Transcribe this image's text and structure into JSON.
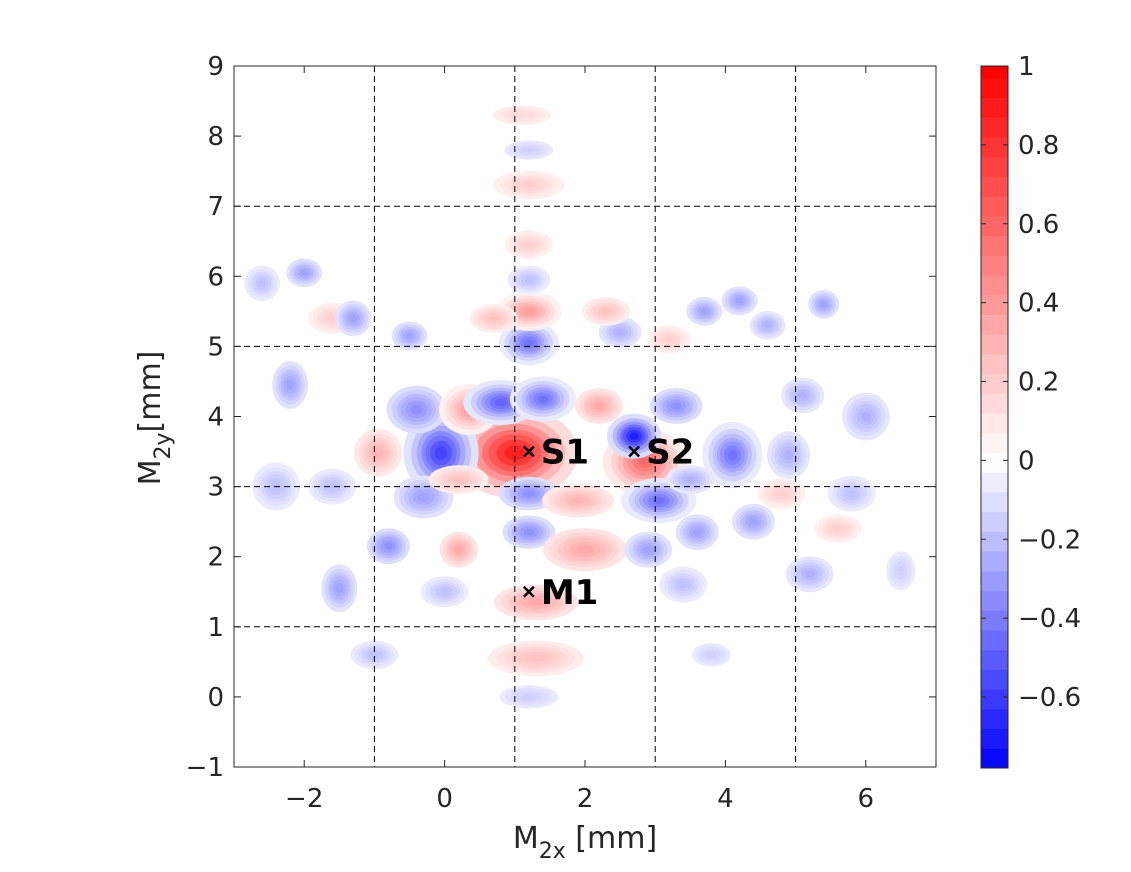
{
  "chart_data": {
    "type": "heatmap",
    "xlabel": {
      "main": "M",
      "sub": "2x",
      "unit": " [mm]"
    },
    "ylabel": {
      "main": "M",
      "sub": "2y",
      "unit": "[mm]"
    },
    "xlim": [
      -3,
      7
    ],
    "ylim": [
      -1,
      9
    ],
    "xticks": [
      -2,
      0,
      2,
      4,
      6
    ],
    "xtick_labels": [
      "−2",
      "0",
      "2",
      "4",
      "6"
    ],
    "yticks": [
      -1,
      0,
      1,
      2,
      3,
      4,
      5,
      6,
      7,
      8,
      9
    ],
    "ytick_labels": [
      "−1",
      "0",
      "1",
      "2",
      "3",
      "4",
      "5",
      "6",
      "7",
      "8",
      "9"
    ],
    "grid_x": [
      -1,
      1,
      3,
      5
    ],
    "grid_y": [
      1,
      3,
      5,
      7
    ],
    "grid_style": "dashed",
    "colorbar": {
      "min": -0.78,
      "max": 1,
      "ticks": [
        1,
        0.8,
        0.6,
        0.4,
        0.2,
        0,
        -0.2,
        -0.4,
        -0.6
      ],
      "tick_labels": [
        "1",
        "0.8",
        "0.6",
        "0.4",
        "0.2",
        "0",
        "−0.2",
        "−0.4",
        "−0.6"
      ],
      "colors": [
        "#0000ff",
        "#ffffff",
        "#ff0000"
      ]
    },
    "markers": [
      {
        "label": "S1",
        "x": 1.2,
        "y": 3.5
      },
      {
        "label": "S2",
        "x": 2.7,
        "y": 3.5
      },
      {
        "label": "M1",
        "x": 1.2,
        "y": 1.5
      }
    ],
    "blobs": [
      {
        "x": 1.0,
        "y": 3.48,
        "v": 0.92,
        "sx": 0.42,
        "sy": 0.3
      },
      {
        "x": 2.85,
        "y": 3.35,
        "v": 0.6,
        "sx": 0.28,
        "sy": 0.22
      },
      {
        "x": 2.7,
        "y": 3.72,
        "v": -0.72,
        "sx": 0.18,
        "sy": 0.15
      },
      {
        "x": -0.05,
        "y": 3.48,
        "v": -0.6,
        "sx": 0.25,
        "sy": 0.28
      },
      {
        "x": -0.95,
        "y": 3.48,
        "v": 0.3,
        "sx": 0.2,
        "sy": 0.2
      },
      {
        "x": 4.1,
        "y": 3.45,
        "v": -0.45,
        "sx": 0.2,
        "sy": 0.22
      },
      {
        "x": 4.9,
        "y": 3.45,
        "v": -0.25,
        "sx": 0.18,
        "sy": 0.2
      },
      {
        "x": -0.4,
        "y": 4.1,
        "v": -0.35,
        "sx": 0.25,
        "sy": 0.2
      },
      {
        "x": -0.3,
        "y": 2.85,
        "v": -0.3,
        "sx": 0.25,
        "sy": 0.18
      },
      {
        "x": 0.35,
        "y": 4.1,
        "v": 0.4,
        "sx": 0.2,
        "sy": 0.17
      },
      {
        "x": 0.8,
        "y": 4.2,
        "v": -0.5,
        "sx": 0.25,
        "sy": 0.15
      },
      {
        "x": 1.4,
        "y": 4.25,
        "v": -0.45,
        "sx": 0.22,
        "sy": 0.15
      },
      {
        "x": 2.2,
        "y": 4.15,
        "v": 0.35,
        "sx": 0.2,
        "sy": 0.15
      },
      {
        "x": 3.3,
        "y": 4.15,
        "v": -0.35,
        "sx": 0.22,
        "sy": 0.15
      },
      {
        "x": 3.05,
        "y": 2.8,
        "v": -0.45,
        "sx": 0.25,
        "sy": 0.15
      },
      {
        "x": 3.5,
        "y": 3.1,
        "v": -0.25,
        "sx": 0.2,
        "sy": 0.12
      },
      {
        "x": 1.2,
        "y": 2.9,
        "v": -0.35,
        "sx": 0.25,
        "sy": 0.14
      },
      {
        "x": 1.9,
        "y": 2.8,
        "v": 0.3,
        "sx": 0.3,
        "sy": 0.14
      },
      {
        "x": 0.2,
        "y": 3.1,
        "v": 0.25,
        "sx": 0.25,
        "sy": 0.12
      },
      {
        "x": 1.2,
        "y": 5.05,
        "v": -0.45,
        "sx": 0.2,
        "sy": 0.15
      },
      {
        "x": 1.2,
        "y": 5.5,
        "v": 0.4,
        "sx": 0.22,
        "sy": 0.13
      },
      {
        "x": 1.2,
        "y": 5.95,
        "v": -0.2,
        "sx": 0.18,
        "sy": 0.12
      },
      {
        "x": 1.2,
        "y": 6.45,
        "v": 0.2,
        "sx": 0.2,
        "sy": 0.12
      },
      {
        "x": 1.2,
        "y": 2.35,
        "v": -0.35,
        "sx": 0.22,
        "sy": 0.14
      },
      {
        "x": 0.2,
        "y": 2.1,
        "v": 0.35,
        "sx": 0.16,
        "sy": 0.15
      },
      {
        "x": -0.8,
        "y": 2.15,
        "v": -0.35,
        "sx": 0.18,
        "sy": 0.15
      },
      {
        "x": 2.0,
        "y": 2.1,
        "v": 0.35,
        "sx": 0.35,
        "sy": 0.18
      },
      {
        "x": 1.3,
        "y": 1.35,
        "v": 0.35,
        "sx": 0.35,
        "sy": 0.15
      },
      {
        "x": 1.3,
        "y": 0.55,
        "v": 0.25,
        "sx": 0.4,
        "sy": 0.15
      },
      {
        "x": 2.9,
        "y": 2.1,
        "v": -0.3,
        "sx": 0.2,
        "sy": 0.15
      },
      {
        "x": 3.6,
        "y": 2.35,
        "v": -0.3,
        "sx": 0.18,
        "sy": 0.15
      },
      {
        "x": 4.4,
        "y": 2.5,
        "v": -0.3,
        "sx": 0.18,
        "sy": 0.15
      },
      {
        "x": -1.5,
        "y": 1.55,
        "v": -0.3,
        "sx": 0.15,
        "sy": 0.2
      },
      {
        "x": -2.2,
        "y": 4.45,
        "v": -0.3,
        "sx": 0.15,
        "sy": 0.2
      },
      {
        "x": -2.0,
        "y": 6.05,
        "v": -0.3,
        "sx": 0.15,
        "sy": 0.12
      },
      {
        "x": -1.6,
        "y": 5.4,
        "v": 0.2,
        "sx": 0.2,
        "sy": 0.13
      },
      {
        "x": -1.3,
        "y": 5.4,
        "v": -0.3,
        "sx": 0.15,
        "sy": 0.15
      },
      {
        "x": -0.5,
        "y": 5.15,
        "v": -0.3,
        "sx": 0.15,
        "sy": 0.12
      },
      {
        "x": 0.7,
        "y": 5.4,
        "v": 0.25,
        "sx": 0.2,
        "sy": 0.12
      },
      {
        "x": 2.5,
        "y": 5.2,
        "v": -0.25,
        "sx": 0.18,
        "sy": 0.13
      },
      {
        "x": 3.2,
        "y": 5.1,
        "v": 0.2,
        "sx": 0.18,
        "sy": 0.12
      },
      {
        "x": 2.3,
        "y": 5.5,
        "v": 0.25,
        "sx": 0.2,
        "sy": 0.12
      },
      {
        "x": 3.7,
        "y": 5.5,
        "v": -0.3,
        "sx": 0.15,
        "sy": 0.12
      },
      {
        "x": 4.2,
        "y": 5.65,
        "v": -0.3,
        "sx": 0.15,
        "sy": 0.12
      },
      {
        "x": 5.4,
        "y": 5.6,
        "v": -0.3,
        "sx": 0.13,
        "sy": 0.12
      },
      {
        "x": 4.6,
        "y": 5.3,
        "v": -0.25,
        "sx": 0.15,
        "sy": 0.12
      },
      {
        "x": 5.1,
        "y": 4.3,
        "v": -0.25,
        "sx": 0.18,
        "sy": 0.15
      },
      {
        "x": 6.0,
        "y": 4.0,
        "v": -0.25,
        "sx": 0.2,
        "sy": 0.2
      },
      {
        "x": 5.8,
        "y": 2.9,
        "v": -0.2,
        "sx": 0.2,
        "sy": 0.15
      },
      {
        "x": 5.2,
        "y": 1.75,
        "v": -0.25,
        "sx": 0.2,
        "sy": 0.15
      },
      {
        "x": 5.6,
        "y": 2.4,
        "v": 0.2,
        "sx": 0.2,
        "sy": 0.12
      },
      {
        "x": 1.2,
        "y": 7.3,
        "v": 0.2,
        "sx": 0.3,
        "sy": 0.12
      },
      {
        "x": 1.2,
        "y": 7.8,
        "v": -0.15,
        "sx": 0.25,
        "sy": 0.1
      },
      {
        "x": 1.1,
        "y": 8.3,
        "v": 0.15,
        "sx": 0.3,
        "sy": 0.1
      },
      {
        "x": 1.2,
        "y": 0.0,
        "v": -0.15,
        "sx": 0.3,
        "sy": 0.12
      },
      {
        "x": -1.0,
        "y": 0.6,
        "v": -0.2,
        "sx": 0.2,
        "sy": 0.12
      },
      {
        "x": 3.4,
        "y": 1.6,
        "v": -0.2,
        "sx": 0.2,
        "sy": 0.15
      },
      {
        "x": -2.4,
        "y": 3.0,
        "v": -0.2,
        "sx": 0.2,
        "sy": 0.2
      },
      {
        "x": -2.6,
        "y": 5.9,
        "v": -0.2,
        "sx": 0.15,
        "sy": 0.15
      },
      {
        "x": 4.8,
        "y": 2.9,
        "v": 0.2,
        "sx": 0.2,
        "sy": 0.13
      },
      {
        "x": -1.6,
        "y": 3.0,
        "v": -0.2,
        "sx": 0.2,
        "sy": 0.15
      },
      {
        "x": 0.0,
        "y": 1.5,
        "v": -0.2,
        "sx": 0.2,
        "sy": 0.13
      },
      {
        "x": 3.8,
        "y": 0.6,
        "v": -0.15,
        "sx": 0.2,
        "sy": 0.12
      },
      {
        "x": 6.5,
        "y": 1.8,
        "v": -0.15,
        "sx": 0.15,
        "sy": 0.2
      }
    ]
  }
}
